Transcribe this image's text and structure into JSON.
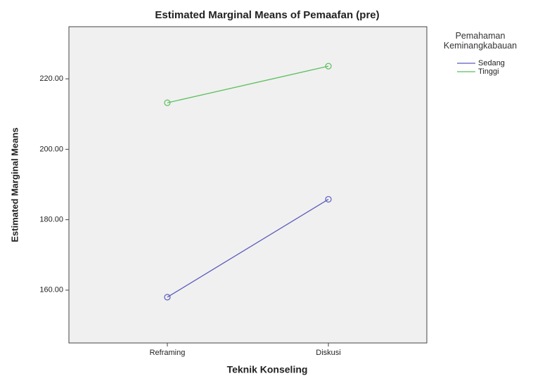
{
  "chart_data": {
    "type": "line",
    "title": "Estimated Marginal Means of Pemaafan (pre)",
    "x_label": "Teknik Konseling",
    "y_label": "Estimated Marginal Means",
    "categories": [
      "Reframing",
      "Diskusi"
    ],
    "legend_title": "Pemahaman Keminangkabauan",
    "legend": "right",
    "series": [
      {
        "name": "Sedang",
        "color": "#5b5bbf",
        "values": [
          158.0,
          185.8
        ]
      },
      {
        "name": "Tinggi",
        "color": "#5cbf5c",
        "values": [
          213.2,
          223.6
        ]
      }
    ],
    "ylim": [
      145,
      234.8
    ],
    "yticks": [
      {
        "value": 160,
        "label": "160.00"
      },
      {
        "value": 180,
        "label": "180.00"
      },
      {
        "value": 200,
        "label": "200.00"
      },
      {
        "value": 220,
        "label": "220.00"
      }
    ],
    "grid": false
  }
}
